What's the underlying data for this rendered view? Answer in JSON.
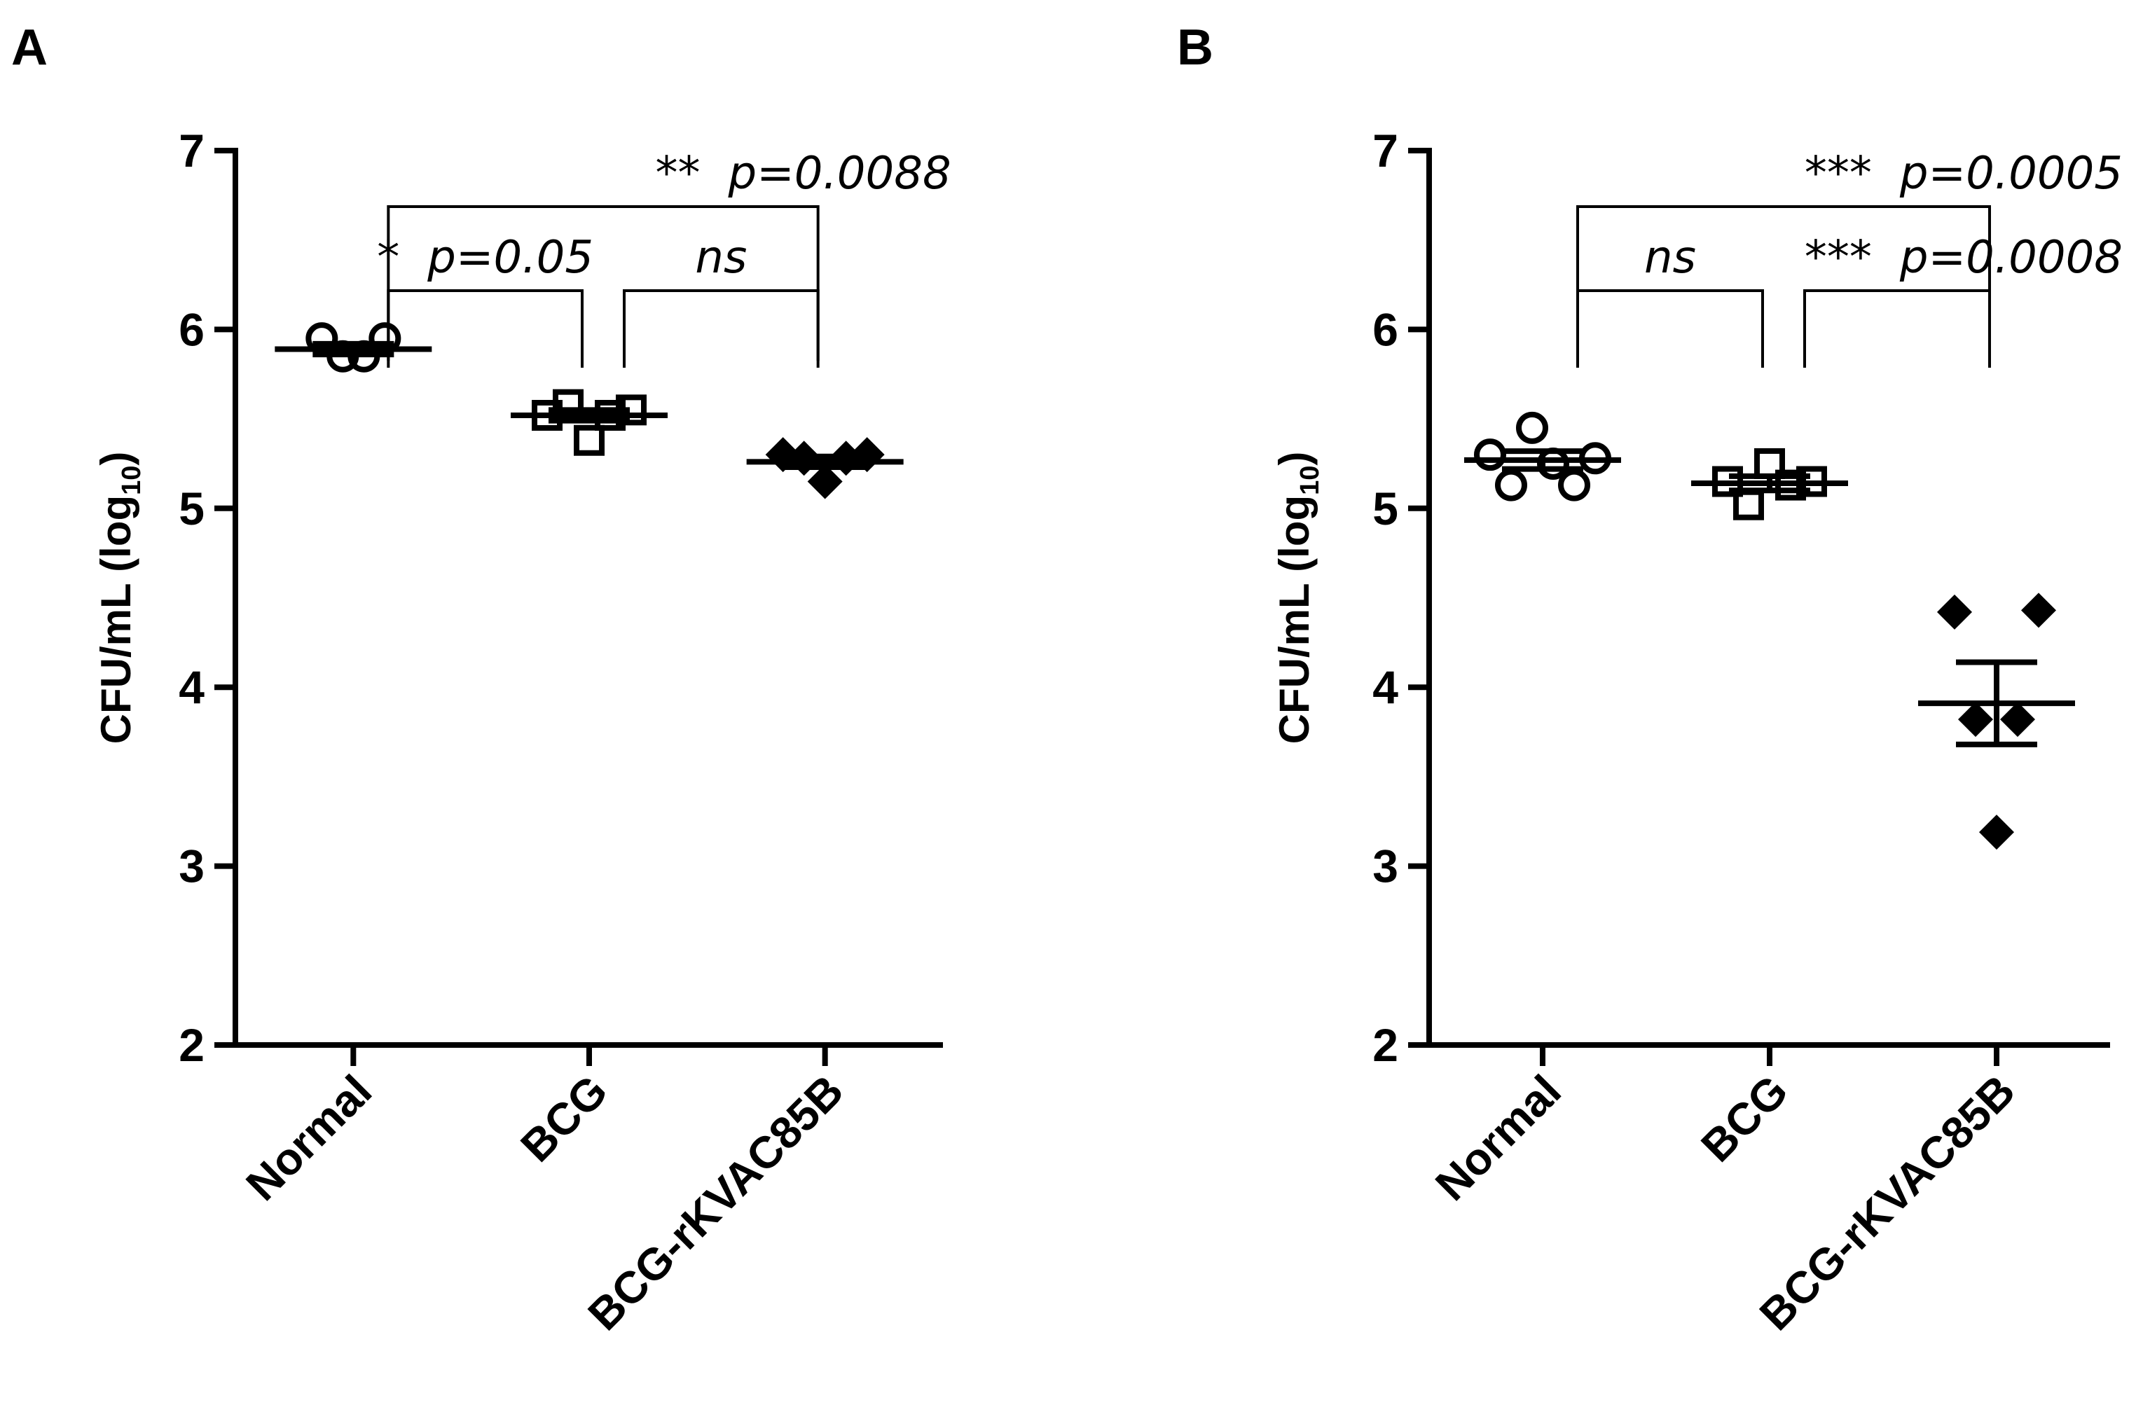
{
  "chart_data": [
    {
      "type": "dotplot",
      "panel_label": "A",
      "y_label": {
        "main": "CFU/mL (log",
        "sub": "10",
        "end": ")"
      },
      "categories": [
        "Normal",
        "BCG",
        "BCG-rKVAC85B"
      ],
      "markers": [
        "circle",
        "square",
        "diamond"
      ],
      "points": [
        [
          5.95,
          5.85,
          5.85,
          5.95
        ],
        [
          5.52,
          5.58,
          5.38,
          5.52,
          5.55
        ],
        [
          5.3,
          5.28,
          5.15,
          5.28,
          5.3
        ]
      ],
      "means": [
        5.89,
        5.52,
        5.26
      ],
      "errors": [
        0.03,
        0.03,
        0.03
      ],
      "color": "#000000",
      "ylim": [
        2,
        7
      ],
      "yticks": [
        2,
        3,
        4,
        5,
        6,
        7
      ],
      "brackets": [
        {
          "from": 0,
          "to": 1,
          "level": 0,
          "align": "center",
          "stars": "*",
          "p": "p=0.05"
        },
        {
          "from": 1,
          "to": 2,
          "level": 0,
          "align": "center",
          "stars": "ns"
        },
        {
          "from": 0,
          "to": 2,
          "level": 1,
          "align": "right",
          "stars": "**",
          "p": "p=0.0088"
        }
      ]
    },
    {
      "type": "dotplot",
      "panel_label": "B",
      "y_label": {
        "main": "CFU/mL (log",
        "sub": "10",
        "end": ")"
      },
      "categories": [
        "Normal",
        "BCG",
        "BCG-rKVAC85B"
      ],
      "markers": [
        "circle",
        "square",
        "diamond"
      ],
      "points": [
        [
          5.3,
          5.13,
          5.45,
          5.25,
          5.13,
          5.28
        ],
        [
          5.15,
          5.02,
          5.25,
          5.13,
          5.15
        ],
        [
          4.42,
          3.82,
          3.19,
          3.82,
          4.43
        ]
      ],
      "means": [
        5.27,
        5.14,
        3.91
      ],
      "errors": [
        0.05,
        0.04,
        0.23
      ],
      "color": "#000000",
      "ylim": [
        2,
        7
      ],
      "yticks": [
        2,
        3,
        4,
        5,
        6,
        7
      ],
      "brackets": [
        {
          "from": 0,
          "to": 1,
          "level": 0,
          "align": "center",
          "stars": "ns"
        },
        {
          "from": 1,
          "to": 2,
          "level": 0,
          "align": "right",
          "stars": "***",
          "p": "p=0.0008"
        },
        {
          "from": 0,
          "to": 2,
          "level": 1,
          "align": "right",
          "stars": "***",
          "p": "p=0.0005"
        }
      ]
    }
  ]
}
